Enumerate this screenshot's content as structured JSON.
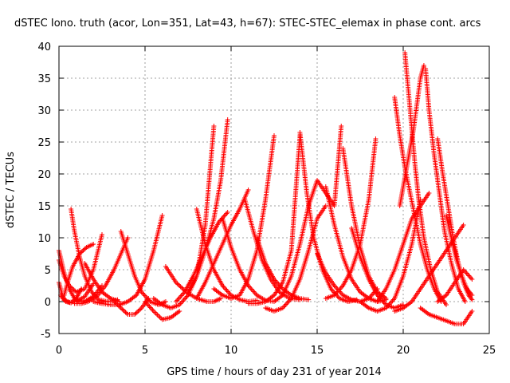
{
  "chart_data": {
    "type": "scatter",
    "title": "dSTEC Iono. truth (acor, Lon=351, Lat=43, h=67): STEC-STEC_elemax in phase cont. arcs",
    "xlabel": "GPS time / hours of day 231 of year 2014",
    "ylabel": "dSTEC  / TECUs",
    "xlim": [
      0,
      25
    ],
    "ylim": [
      -5,
      40
    ],
    "xticks": [
      0,
      5,
      10,
      15,
      20,
      25
    ],
    "yticks": [
      -5,
      0,
      5,
      10,
      15,
      20,
      25,
      30,
      35,
      40
    ],
    "xtick_labels": [
      "0",
      "5",
      "10",
      "15",
      "20",
      "25"
    ],
    "ytick_labels": [
      "-5",
      "0",
      "5",
      "10",
      "15",
      "20",
      "25",
      "30",
      "35",
      "40"
    ],
    "grid": true,
    "marker": "+",
    "color": "#ff0000",
    "arcs": [
      {
        "x": [
          0.0,
          0.3,
          0.6,
          0.9,
          1.2,
          1.6,
          2.0,
          2.5
        ],
        "y": [
          8.0,
          4.5,
          2.0,
          0.5,
          0.0,
          0.2,
          0.8,
          2.5
        ]
      },
      {
        "x": [
          0.0,
          0.2,
          0.4,
          0.7,
          1.0,
          1.3
        ],
        "y": [
          3.0,
          1.0,
          0.0,
          -0.2,
          0.5,
          2.0
        ]
      },
      {
        "x": [
          0.0,
          0.3,
          0.6,
          1.0,
          1.5,
          2.0,
          2.5
        ],
        "y": [
          6.5,
          4.0,
          2.5,
          1.5,
          2.0,
          5.0,
          10.5
        ]
      },
      {
        "x": [
          0.1,
          0.3,
          0.6,
          1.0,
          1.5,
          2.0
        ],
        "y": [
          1.0,
          0.2,
          -0.1,
          0.0,
          0.8,
          2.8
        ]
      },
      {
        "x": [
          0.7,
          0.9,
          1.2,
          1.5,
          1.9,
          2.3,
          2.8,
          3.4
        ],
        "y": [
          14.5,
          11.0,
          7.0,
          4.0,
          1.5,
          0.3,
          0.0,
          0.3
        ]
      },
      {
        "x": [
          0.3,
          0.5,
          0.8,
          1.2,
          1.6,
          2.0
        ],
        "y": [
          1.0,
          3.0,
          5.5,
          7.5,
          8.5,
          9.0
        ]
      },
      {
        "x": [
          1.5,
          2.0,
          2.5,
          3.0,
          3.5
        ],
        "y": [
          6.0,
          3.5,
          1.5,
          0.5,
          0.0
        ]
      },
      {
        "x": [
          0.9,
          1.3,
          1.7,
          2.2,
          2.7,
          3.2,
          3.6,
          4.0
        ],
        "y": [
          -0.3,
          -0.3,
          0.0,
          0.8,
          2.5,
          5.0,
          7.5,
          10.0
        ]
      },
      {
        "x": [
          3.6,
          4.0,
          4.4,
          4.8,
          5.3,
          5.8,
          6.2
        ],
        "y": [
          11.0,
          7.5,
          4.0,
          1.5,
          0.0,
          -0.5,
          0.0
        ]
      },
      {
        "x": [
          2.0,
          2.5,
          3.0,
          3.5,
          4.0,
          4.5,
          5.0,
          5.5,
          6.0
        ],
        "y": [
          0.0,
          -0.3,
          -0.5,
          -0.5,
          0.0,
          1.0,
          3.5,
          8.0,
          13.5
        ]
      },
      {
        "x": [
          3.2,
          3.6,
          4.0,
          4.4,
          4.8,
          5.2
        ],
        "y": [
          0.0,
          -1.0,
          -2.0,
          -2.0,
          -1.0,
          0.5
        ]
      },
      {
        "x": [
          5.0,
          5.5,
          6.0,
          6.5,
          7.0
        ],
        "y": [
          0.0,
          -1.5,
          -2.8,
          -2.5,
          -1.5
        ]
      },
      {
        "x": [
          6.2,
          6.8,
          7.4,
          8.0,
          8.6,
          9.0,
          9.4
        ],
        "y": [
          5.5,
          3.0,
          1.5,
          0.5,
          0.0,
          0.0,
          0.5
        ]
      },
      {
        "x": [
          5.5,
          6.0,
          6.5,
          7.0,
          7.5,
          8.0,
          8.5,
          9.0
        ],
        "y": [
          0.5,
          -0.5,
          -1.0,
          -0.5,
          1.0,
          4.0,
          12.0,
          27.5
        ]
      },
      {
        "x": [
          6.8,
          7.3,
          7.8,
          8.3,
          8.8,
          9.3,
          9.8
        ],
        "y": [
          0.0,
          1.5,
          4.0,
          7.0,
          10.0,
          12.5,
          14.0
        ]
      },
      {
        "x": [
          7.5,
          8.0,
          8.5,
          9.0,
          9.4,
          9.8
        ],
        "y": [
          1.5,
          4.0,
          8.0,
          13.0,
          19.0,
          28.5
        ]
      },
      {
        "x": [
          8.0,
          8.5,
          9.0,
          9.5,
          10.0,
          10.5,
          11.0
        ],
        "y": [
          0.5,
          3.0,
          6.0,
          9.0,
          12.0,
          14.5,
          17.5
        ]
      },
      {
        "x": [
          8.0,
          8.5,
          9.0,
          9.5,
          10.0,
          10.5,
          11.0,
          11.5
        ],
        "y": [
          14.5,
          9.0,
          5.0,
          2.5,
          1.0,
          0.3,
          0.0,
          0.2
        ]
      },
      {
        "x": [
          9.0,
          9.5,
          10.0,
          10.5,
          11.0,
          11.5,
          12.0,
          12.5
        ],
        "y": [
          2.0,
          1.0,
          0.5,
          1.0,
          3.5,
          8.0,
          16.0,
          26.0
        ]
      },
      {
        "x": [
          9.5,
          10.0,
          10.5,
          11.0,
          11.5,
          12.0,
          12.5
        ],
        "y": [
          13.0,
          8.5,
          5.0,
          2.5,
          1.0,
          0.2,
          0.0
        ]
      },
      {
        "x": [
          11.0,
          11.5,
          12.0,
          12.5,
          13.0,
          13.5,
          14.0
        ],
        "y": [
          -0.3,
          -0.3,
          0.0,
          1.0,
          3.0,
          8.0,
          26.0
        ]
      },
      {
        "x": [
          10.8,
          11.3,
          11.8,
          12.3,
          12.8,
          13.4,
          14.0
        ],
        "y": [
          16.0,
          11.0,
          6.5,
          3.5,
          1.5,
          0.5,
          0.3
        ]
      },
      {
        "x": [
          11.5,
          12.0,
          12.5,
          13.0,
          13.5,
          14.0,
          14.5
        ],
        "y": [
          10.0,
          6.0,
          3.5,
          2.0,
          1.0,
          0.5,
          0.3
        ]
      },
      {
        "x": [
          12.0,
          12.5,
          13.0,
          13.5,
          14.0,
          14.5,
          15.0,
          15.5
        ],
        "y": [
          -1.0,
          -1.5,
          -1.0,
          0.5,
          3.5,
          8.0,
          13.0,
          15.0
        ]
      },
      {
        "x": [
          12.5,
          13.0,
          13.5,
          14.0,
          14.5,
          15.0,
          15.5,
          16.0,
          16.4
        ],
        "y": [
          0.0,
          1.0,
          4.0,
          9.0,
          15.0,
          19.0,
          17.0,
          15.0,
          27.5
        ]
      },
      {
        "x": [
          14.0,
          14.4,
          14.8,
          15.3,
          15.8,
          16.3,
          16.8,
          17.3
        ],
        "y": [
          26.5,
          17.0,
          10.0,
          5.0,
          2.0,
          0.5,
          0.0,
          0.3
        ]
      },
      {
        "x": [
          15.0,
          15.5,
          16.0,
          16.5,
          17.0,
          17.5,
          18.0,
          18.5
        ],
        "y": [
          7.5,
          4.5,
          2.5,
          1.0,
          0.3,
          0.0,
          0.5,
          2.0
        ]
      },
      {
        "x": [
          15.5,
          16.0,
          16.5,
          17.0,
          17.5,
          18.0,
          18.5,
          19.0
        ],
        "y": [
          18.0,
          12.0,
          7.0,
          3.5,
          1.5,
          0.5,
          0.0,
          0.3
        ]
      },
      {
        "x": [
          16.5,
          17.0,
          17.5,
          18.0,
          18.5,
          19.0
        ],
        "y": [
          24.0,
          15.0,
          8.5,
          4.0,
          1.5,
          0.5
        ]
      },
      {
        "x": [
          15.5,
          16.0,
          16.5,
          17.0,
          17.5,
          18.0,
          18.4
        ],
        "y": [
          0.5,
          1.0,
          2.5,
          5.0,
          9.0,
          16.0,
          25.5
        ]
      },
      {
        "x": [
          17.0,
          17.5,
          18.0,
          18.5,
          19.0,
          19.5,
          20.0
        ],
        "y": [
          11.5,
          7.0,
          3.5,
          1.0,
          -0.5,
          -1.0,
          -0.5
        ]
      },
      {
        "x": [
          17.5,
          18.0,
          18.5,
          19.0,
          19.5,
          20.0,
          20.5,
          21.0
        ],
        "y": [
          0.0,
          -1.0,
          -1.5,
          -1.0,
          0.5,
          4.0,
          9.0,
          16.0
        ]
      },
      {
        "x": [
          18.5,
          19.0,
          19.5,
          20.0,
          20.5,
          21.0,
          21.5
        ],
        "y": [
          0.0,
          2.0,
          5.0,
          9.0,
          13.0,
          15.0,
          17.0
        ]
      },
      {
        "x": [
          19.5,
          19.8,
          20.1,
          20.4,
          20.7,
          21.0,
          21.4,
          21.8,
          22.2
        ],
        "y": [
          32.0,
          26.0,
          21.0,
          17.0,
          13.0,
          9.0,
          5.0,
          2.0,
          0.0
        ]
      },
      {
        "x": [
          20.1,
          20.3,
          20.5,
          20.7,
          20.9,
          21.2,
          21.6,
          22.0,
          22.5
        ],
        "y": [
          39.0,
          33.0,
          27.0,
          21.0,
          16.0,
          10.0,
          5.0,
          1.5,
          -0.5
        ]
      },
      {
        "x": [
          19.8,
          20.0,
          20.2,
          20.4,
          20.6,
          20.8,
          21.0,
          21.2
        ],
        "y": [
          15.0,
          18.0,
          21.0,
          24.0,
          27.0,
          31.0,
          35.0,
          37.0
        ]
      },
      {
        "x": [
          21.3,
          21.5,
          21.8,
          22.1,
          22.4,
          22.8,
          23.2,
          23.6
        ],
        "y": [
          36.5,
          30.0,
          23.0,
          17.0,
          11.0,
          6.0,
          2.0,
          0.0
        ]
      },
      {
        "x": [
          22.0,
          22.3,
          22.6,
          22.9,
          23.2,
          23.5,
          23.8,
          24.0
        ],
        "y": [
          25.5,
          20.0,
          15.0,
          10.0,
          6.0,
          3.0,
          1.0,
          0.3
        ]
      },
      {
        "x": [
          22.5,
          22.8,
          23.1,
          23.4,
          23.7,
          24.0
        ],
        "y": [
          13.5,
          10.0,
          6.5,
          4.0,
          2.0,
          1.0
        ]
      },
      {
        "x": [
          19.5,
          20.0,
          20.5,
          21.0,
          21.5,
          22.0,
          22.5,
          23.0,
          23.5
        ],
        "y": [
          -1.5,
          -1.0,
          0.0,
          2.0,
          4.0,
          6.0,
          8.0,
          10.0,
          12.0
        ]
      },
      {
        "x": [
          21.0,
          21.5,
          22.0,
          22.5,
          23.0,
          23.5,
          24.0
        ],
        "y": [
          -1.0,
          -2.0,
          -2.5,
          -3.0,
          -3.5,
          -3.5,
          -1.5
        ]
      },
      {
        "x": [
          22.0,
          22.5,
          23.0,
          23.5,
          24.0
        ],
        "y": [
          0.0,
          1.0,
          3.0,
          5.0,
          3.5
        ]
      },
      {
        "x": [
          23.0,
          23.3,
          23.6,
          23.9
        ],
        "y": [
          8.0,
          5.0,
          2.5,
          1.0
        ]
      }
    ]
  }
}
